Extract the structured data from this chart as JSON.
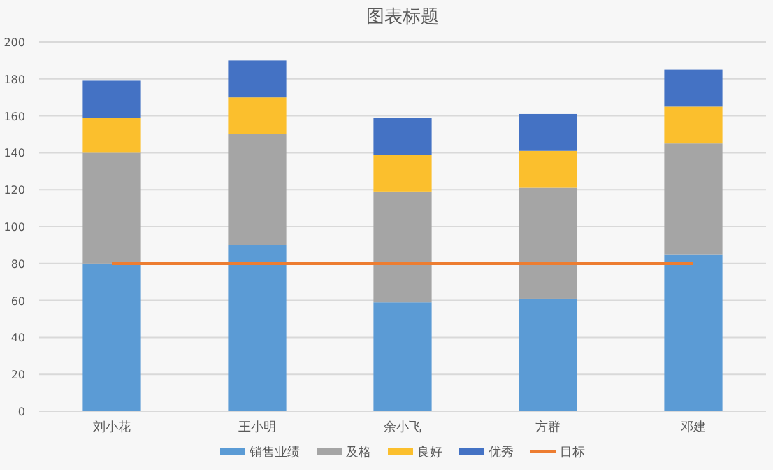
{
  "chart_data": {
    "type": "bar",
    "title": "图表标题",
    "stacked": true,
    "categories": [
      "刘小花",
      "王小明",
      "余小飞",
      "方群",
      "邓建"
    ],
    "series": [
      {
        "name": "销售业绩",
        "color": "#5b9bd5",
        "values": [
          80,
          90,
          59,
          61,
          85
        ]
      },
      {
        "name": "及格",
        "color": "#a5a5a5",
        "values": [
          60,
          60,
          60,
          60,
          60
        ]
      },
      {
        "name": "良好",
        "color": "#fbbf2d",
        "values": [
          19,
          20,
          20,
          20,
          20
        ]
      },
      {
        "name": "优秀",
        "color": "#4472c4",
        "values": [
          20,
          20,
          20,
          20,
          20
        ]
      },
      {
        "name": "目标",
        "color": "#ed7d31",
        "type": "line",
        "values": [
          80,
          80,
          80,
          80,
          80
        ]
      }
    ],
    "ylim": [
      0,
      200
    ],
    "yticks": [
      0,
      20,
      40,
      60,
      80,
      100,
      120,
      140,
      160,
      180,
      200
    ],
    "grid": "y",
    "legend": "bottom",
    "marker": "none"
  }
}
